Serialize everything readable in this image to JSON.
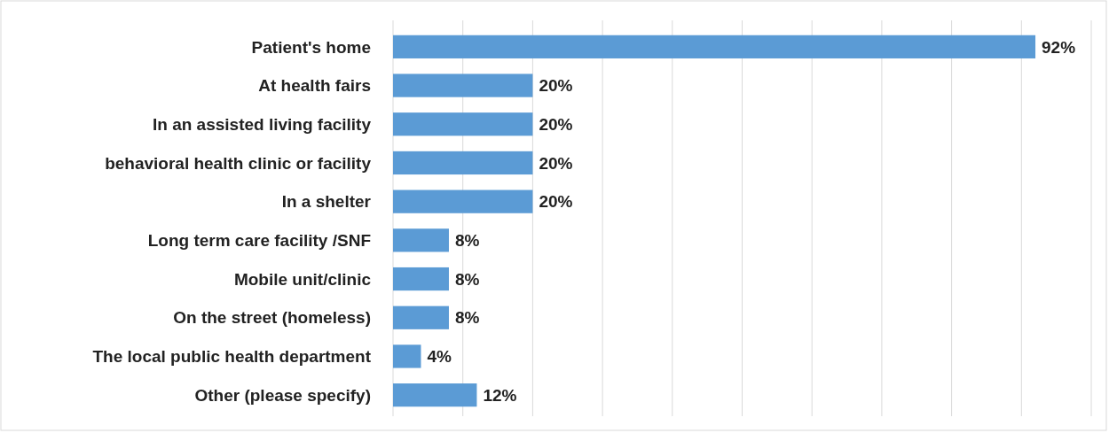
{
  "chart_data": {
    "type": "bar",
    "orientation": "horizontal",
    "categories": [
      "Patient's home",
      "At health fairs",
      "In an assisted living facility",
      "behavioral health clinic or facility",
      "In a shelter",
      "Long term care facility /SNF",
      "Mobile unit/clinic",
      "On the street (homeless)",
      "The local public health department",
      "Other (please specify)"
    ],
    "values": [
      92,
      20,
      20,
      20,
      20,
      8,
      8,
      8,
      4,
      12
    ],
    "value_labels": [
      "92%",
      "20%",
      "20%",
      "20%",
      "20%",
      "8%",
      "8%",
      "8%",
      "4%",
      "12%"
    ],
    "color": "#5b9bd5",
    "grid": "x"
  }
}
